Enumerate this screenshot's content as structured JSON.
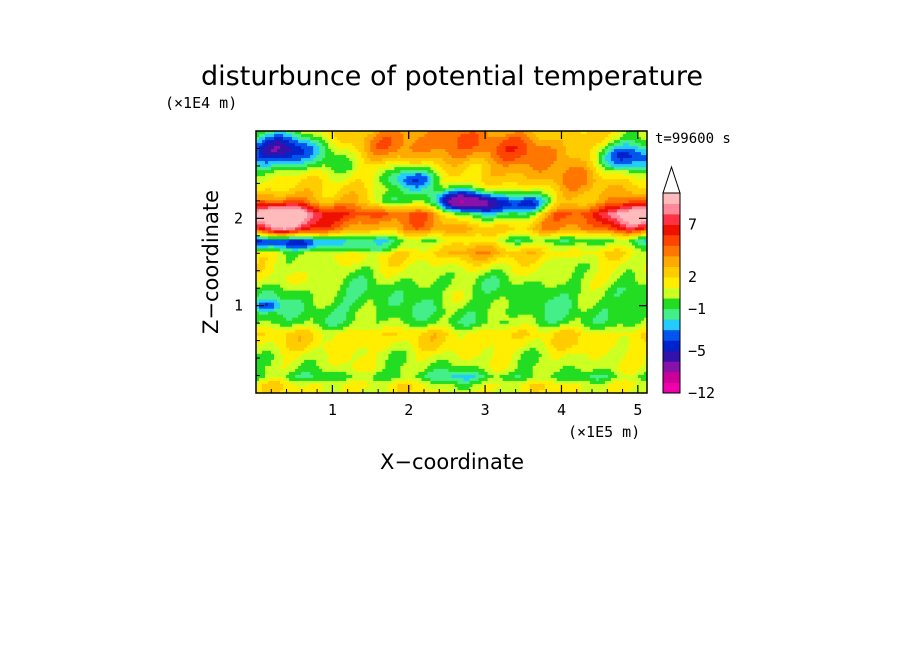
{
  "chart_data": {
    "type": "heatmap",
    "title": "disturbunce of potential temperature",
    "xlabel": "X−coordinate",
    "ylabel": "Z−coordinate",
    "x_unit": "(×1E5 m)",
    "y_unit": "(×1E4 m)",
    "time_label": "t=99600 s",
    "xlim": [
      0,
      5.12
    ],
    "ylim": [
      0,
      3.0
    ],
    "x_ticks": [
      1,
      2,
      3,
      4,
      5
    ],
    "x_tick_labels": [
      "1",
      "2",
      "3",
      "4",
      "5"
    ],
    "y_ticks": [
      1,
      2
    ],
    "y_tick_labels": [
      "1",
      "2"
    ],
    "colorbar": {
      "levels": [
        -12,
        -10,
        -8,
        -6,
        -5,
        -4,
        -3,
        -2,
        -1,
        0,
        1,
        2,
        3,
        4,
        5,
        6,
        7,
        8,
        9,
        10
      ],
      "colors": [
        "#ee00aa",
        "#cc0099",
        "#8811aa",
        "#3311aa",
        "#0022cc",
        "#0055ee",
        "#22ccff",
        "#44ee88",
        "#22dd22",
        "#ccff22",
        "#ffee00",
        "#ffcc00",
        "#ffaa00",
        "#ff7700",
        "#ff4400",
        "#ee1100",
        "#ff3344",
        "#ff8899",
        "#ffbbbb"
      ],
      "tick_values": [
        -12,
        -5,
        -1,
        2,
        7
      ],
      "tick_labels": [
        "−12",
        "−5",
        "−1",
        "2",
        "7"
      ],
      "extend_top": true
    },
    "features": [
      {
        "x": 0.35,
        "z": 2.0,
        "sx": 0.45,
        "sz": 0.16,
        "v": 6.5
      },
      {
        "x": 4.95,
        "z": 2.0,
        "sx": 0.35,
        "sz": 0.14,
        "v": 5.5
      },
      {
        "x": 0.3,
        "z": 2.78,
        "sx": 0.45,
        "sz": 0.13,
        "v": -6.5
      },
      {
        "x": 4.9,
        "z": 2.72,
        "sx": 0.35,
        "sz": 0.12,
        "v": -6
      },
      {
        "x": 0.35,
        "z": 1.72,
        "sx": 0.5,
        "sz": 0.06,
        "v": -4
      },
      {
        "x": 1.4,
        "z": 1.65,
        "sx": 0.5,
        "sz": 0.05,
        "v": -2
      },
      {
        "x": 1.9,
        "z": 2.9,
        "sx": 0.6,
        "sz": 0.2,
        "v": 3.5
      },
      {
        "x": 3.2,
        "z": 2.8,
        "sx": 0.6,
        "sz": 0.25,
        "v": 3.5
      },
      {
        "x": 4.2,
        "z": 2.6,
        "sx": 0.5,
        "sz": 0.25,
        "v": 2.5
      },
      {
        "x": 2.1,
        "z": 2.45,
        "sx": 0.25,
        "sz": 0.1,
        "v": -5.5
      },
      {
        "x": 2.7,
        "z": 2.2,
        "sx": 0.32,
        "sz": 0.1,
        "v": -7.5
      },
      {
        "x": 3.15,
        "z": 2.1,
        "sx": 0.35,
        "sz": 0.12,
        "v": -6.5
      },
      {
        "x": 3.6,
        "z": 2.15,
        "sx": 0.2,
        "sz": 0.1,
        "v": -4.5
      },
      {
        "x": 1.75,
        "z": 2.2,
        "sx": 0.15,
        "sz": 0.07,
        "v": -3
      },
      {
        "x": 2.8,
        "z": 1.7,
        "sx": 0.9,
        "sz": 0.13,
        "v": 2.8
      },
      {
        "x": 2.7,
        "z": 1.45,
        "sx": 0.4,
        "sz": 0.07,
        "v": 0.5
      },
      {
        "x": 2.8,
        "z": 1.1,
        "sx": 0.5,
        "sz": 0.12,
        "v": 0.6
      },
      {
        "x": 0.5,
        "z": 1.3,
        "sx": 0.5,
        "sz": 0.1,
        "v": 1
      },
      {
        "x": 4.7,
        "z": 1.3,
        "sx": 0.4,
        "sz": 0.1,
        "v": 1
      },
      {
        "x": 2.7,
        "z": 0.17,
        "sx": 0.35,
        "sz": 0.1,
        "v": -1.3
      },
      {
        "x": 0.15,
        "z": 1.0,
        "sx": 0.12,
        "sz": 0.04,
        "v": -3
      }
    ],
    "background_profile": [
      [
        0.0,
        1.2
      ],
      [
        0.1,
        1.3
      ],
      [
        0.18,
        -0.5
      ],
      [
        0.28,
        0.5
      ],
      [
        0.42,
        0.7
      ],
      [
        0.55,
        1.5
      ],
      [
        0.68,
        1.8
      ],
      [
        0.8,
        -0.3
      ],
      [
        0.95,
        -0.7
      ],
      [
        1.2,
        -0.6
      ],
      [
        1.45,
        0.5
      ],
      [
        1.6,
        1.2
      ],
      [
        1.75,
        -2
      ],
      [
        1.88,
        3
      ],
      [
        2.05,
        5
      ],
      [
        2.2,
        2
      ],
      [
        2.4,
        1.5
      ],
      [
        2.6,
        0.5
      ],
      [
        2.8,
        1
      ],
      [
        3.0,
        0.8
      ]
    ]
  }
}
